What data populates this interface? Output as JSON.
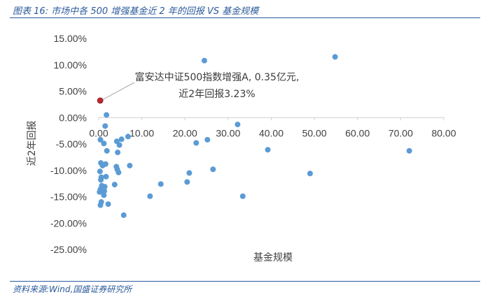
{
  "caption": "图表 16:  市场中各 500 增强基金近 2 年的回报 VS 基金规模",
  "source": "资料来源:Wind,国盛证券研究所",
  "chart_data": {
    "type": "scatter",
    "xlabel": "基金规模",
    "ylabel": "近2年回报",
    "xlim": [
      0,
      80
    ],
    "ylim": [
      -25,
      15
    ],
    "x_ticks": [
      "0.00",
      "10.00",
      "20.00",
      "30.00",
      "40.00",
      "50.00",
      "60.00",
      "70.00",
      "80.00"
    ],
    "y_ticks": [
      "15.00%",
      "10.00%",
      "5.00%",
      "0.00%",
      "-5.00%",
      "-10.00%",
      "-15.00%",
      "-20.00%",
      "-25.00%"
    ],
    "grid": false,
    "point_color": "#5b9bd5",
    "highlight_color": "#c0272d",
    "annotation": {
      "line1": "富安达中证500指数增强A, 0.35亿元,",
      "line2": "近2年回报3.23%",
      "x": 0.35,
      "y": 3.23
    },
    "points": [
      {
        "x": 54.8,
        "y": 11.5
      },
      {
        "x": 24.5,
        "y": 10.8
      },
      {
        "x": 1.8,
        "y": 0.5
      },
      {
        "x": 1.5,
        "y": -1.6
      },
      {
        "x": 32.2,
        "y": -1.3
      },
      {
        "x": 6.8,
        "y": -3.6
      },
      {
        "x": 5.3,
        "y": -4.1
      },
      {
        "x": 25.2,
        "y": -4.2
      },
      {
        "x": 22.6,
        "y": -4.8
      },
      {
        "x": 4.2,
        "y": -4.5
      },
      {
        "x": 0.4,
        "y": -4.2
      },
      {
        "x": 1.2,
        "y": -4.9
      },
      {
        "x": 4.8,
        "y": -5.2
      },
      {
        "x": 39.2,
        "y": -6.1
      },
      {
        "x": 72.0,
        "y": -6.3
      },
      {
        "x": 1.9,
        "y": -6.3
      },
      {
        "x": 4.4,
        "y": -6.6
      },
      {
        "x": 0.5,
        "y": -8.6
      },
      {
        "x": 1.6,
        "y": -8.8
      },
      {
        "x": 0.9,
        "y": -9.1
      },
      {
        "x": 7.2,
        "y": -9.1
      },
      {
        "x": 4.1,
        "y": -9.3
      },
      {
        "x": 4.3,
        "y": -9.8
      },
      {
        "x": 26.5,
        "y": -9.8
      },
      {
        "x": 0.3,
        "y": -10.2
      },
      {
        "x": 4.6,
        "y": -10.4
      },
      {
        "x": 21.0,
        "y": -10.5
      },
      {
        "x": 49.0,
        "y": -10.6
      },
      {
        "x": 0.6,
        "y": -11.3
      },
      {
        "x": 1.7,
        "y": -11.2
      },
      {
        "x": 0.5,
        "y": -11.8
      },
      {
        "x": 20.5,
        "y": -12.2
      },
      {
        "x": 14.4,
        "y": -12.6
      },
      {
        "x": 3.7,
        "y": -12.7
      },
      {
        "x": 0.7,
        "y": -12.9
      },
      {
        "x": 1.4,
        "y": -13.1
      },
      {
        "x": 0.4,
        "y": -13.6
      },
      {
        "x": 0.9,
        "y": -13.5
      },
      {
        "x": 1.3,
        "y": -13.9
      },
      {
        "x": 0.2,
        "y": -14.1
      },
      {
        "x": 11.9,
        "y": -14.9
      },
      {
        "x": 33.4,
        "y": -14.9
      },
      {
        "x": 1.2,
        "y": -14.7
      },
      {
        "x": 0.6,
        "y": -16.0
      },
      {
        "x": 2.2,
        "y": -16.4
      },
      {
        "x": 0.4,
        "y": -16.6
      },
      {
        "x": 5.8,
        "y": -18.5
      }
    ]
  }
}
